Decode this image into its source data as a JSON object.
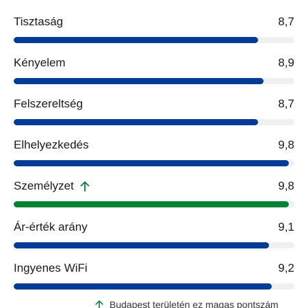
{
  "scale_max": 10,
  "colors": {
    "bar": "#003b95",
    "bar_high": "#008234",
    "track": "#f0f0f0"
  },
  "ratings": [
    {
      "label": "Tisztaság",
      "score_text": "8,7",
      "score": 8.7,
      "high": false
    },
    {
      "label": "Kényelem",
      "score_text": "8,9",
      "score": 8.9,
      "high": false
    },
    {
      "label": "Felszereltség",
      "score_text": "8,7",
      "score": 8.7,
      "high": false
    },
    {
      "label": "Elhelyezkedés",
      "score_text": "9,8",
      "score": 9.8,
      "high": false
    },
    {
      "label": "Személyzet",
      "score_text": "9,8",
      "score": 9.8,
      "high": true,
      "icon": "arrow-up-icon"
    },
    {
      "label": "Ár-érték arány",
      "score_text": "9,1",
      "score": 9.1,
      "high": false
    },
    {
      "label": "Ingyenes WiFi",
      "score_text": "9,2",
      "score": 9.2,
      "high": false
    }
  ],
  "footnote": {
    "icon": "arrow-up-icon",
    "text": "Budapest területén ez magas pontszám"
  }
}
